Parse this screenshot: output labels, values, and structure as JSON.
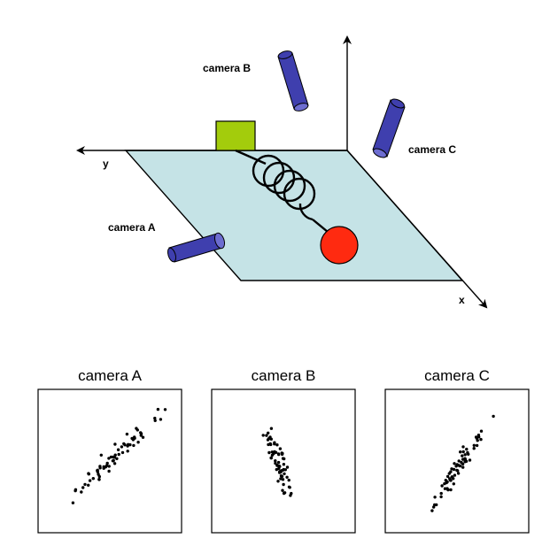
{
  "scene": {
    "axis_x_label": "x",
    "axis_y_label": "y",
    "cameras": [
      {
        "id": "a",
        "label": "camera A"
      },
      {
        "id": "b",
        "label": "camera B"
      },
      {
        "id": "c",
        "label": "camera C"
      }
    ],
    "colors": {
      "plane": "#c5e3e6",
      "block": "#a3cc0c",
      "mass": "#ff2a10",
      "camera": "#3f3fae",
      "camera_cap": "#6d6dd0"
    }
  },
  "plots": [
    {
      "id": "a",
      "title": "camera A",
      "point_count": 66
    },
    {
      "id": "b",
      "title": "camera B",
      "point_count": 66
    },
    {
      "id": "c",
      "title": "camera C",
      "point_count": 66
    }
  ]
}
